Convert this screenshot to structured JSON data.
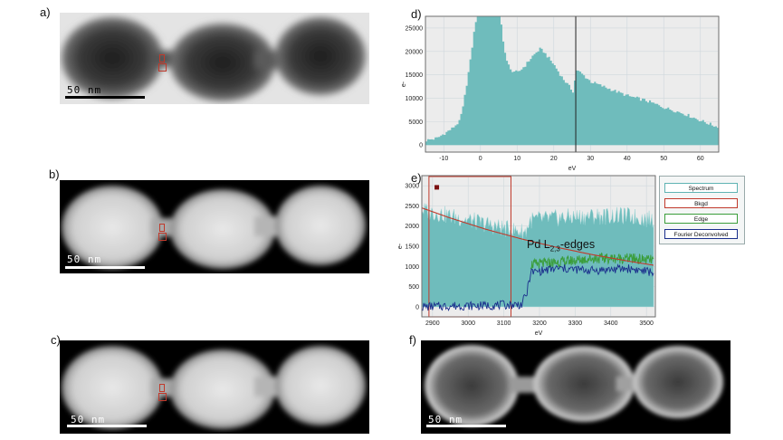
{
  "panels": {
    "a": {
      "label": "a)",
      "scale_label": "50 nm"
    },
    "b": {
      "label": "b)",
      "scale_label": "50 nm"
    },
    "c": {
      "label": "c)",
      "scale_label": "50 nm"
    },
    "d": {
      "label": "d)"
    },
    "e": {
      "label": "e)",
      "annotation_prefix": "Pd L",
      "annotation_sub": "2,3",
      "annotation_suffix": "-edges"
    },
    "f": {
      "label": "f)",
      "scale_label": "50 nm"
    }
  },
  "legend": {
    "items": [
      {
        "label": "Spectrum",
        "color": "#5fb3b3"
      },
      {
        "label": "Bkgd",
        "color": "#c0392b"
      },
      {
        "label": "Edge",
        "color": "#3a9d3a"
      },
      {
        "label": "Fourier Deconvolved",
        "color": "#1a2e8c"
      }
    ]
  },
  "chart_data": [
    {
      "id": "d",
      "type": "area",
      "xlabel": "eV",
      "ylabel": "e-",
      "xlim": [
        -15,
        65
      ],
      "ylim": [
        -1500,
        27500
      ],
      "xticks": [
        -10,
        0,
        10,
        20,
        30,
        40,
        50,
        60
      ],
      "yticks": [
        0,
        5000,
        10000,
        15000,
        20000,
        25000
      ],
      "grid": true,
      "fill_color": "#6fbcbc",
      "marker_x": 26,
      "series": [
        {
          "x": [
            -15,
            -12,
            -10,
            -8,
            -6,
            -5,
            -4,
            -3,
            -2,
            -1,
            0,
            1,
            2,
            3,
            4,
            5,
            6,
            7,
            8,
            10,
            12,
            14,
            16,
            17,
            18,
            20,
            22,
            24,
            25,
            26,
            27,
            30,
            35,
            40,
            45,
            50,
            55,
            60,
            64
          ],
          "values": [
            1000,
            1500,
            2500,
            3500,
            5000,
            8000,
            13000,
            18000,
            24000,
            29000,
            30000,
            30000,
            30000,
            30000,
            30000,
            29000,
            22000,
            18000,
            16000,
            15500,
            17000,
            19000,
            20500,
            20000,
            19000,
            17000,
            14500,
            12500,
            11500,
            16000,
            15500,
            13500,
            12000,
            10500,
            9500,
            8000,
            6800,
            5200,
            4000
          ]
        }
      ]
    },
    {
      "id": "e",
      "type": "line",
      "xlabel": "eV",
      "ylabel": "e-",
      "xlim": [
        2870,
        3525
      ],
      "ylim": [
        -250,
        3250
      ],
      "xticks": [
        2900,
        3000,
        3100,
        3200,
        3300,
        3400,
        3500
      ],
      "yticks": [
        0,
        500,
        1000,
        1500,
        2000,
        2500,
        3000
      ],
      "grid": true,
      "series": [
        {
          "name": "Spectrum",
          "x": [
            2870,
            2950,
            3050,
            3120,
            3160,
            3175,
            3250,
            3350,
            3450,
            3520
          ],
          "values": [
            2400,
            2250,
            2050,
            1900,
            1850,
            2150,
            2200,
            2250,
            2250,
            2150
          ]
        },
        {
          "name": "Bkgd",
          "x": [
            2870,
            2950,
            3050,
            3150,
            3250,
            3350,
            3450,
            3520
          ],
          "values": [
            2450,
            2200,
            1920,
            1680,
            1470,
            1290,
            1130,
            1030
          ]
        },
        {
          "name": "Edge",
          "x": [
            3175,
            3250,
            3350,
            3450,
            3520
          ],
          "values": [
            1050,
            1100,
            1200,
            1200,
            1150
          ]
        },
        {
          "name": "Fourier Deconvolved",
          "x": [
            2870,
            2950,
            3050,
            3150,
            3165,
            3175,
            3250,
            3350,
            3450,
            3520
          ],
          "values": [
            0,
            20,
            30,
            60,
            350,
            850,
            950,
            900,
            950,
            850
          ]
        }
      ]
    }
  ]
}
